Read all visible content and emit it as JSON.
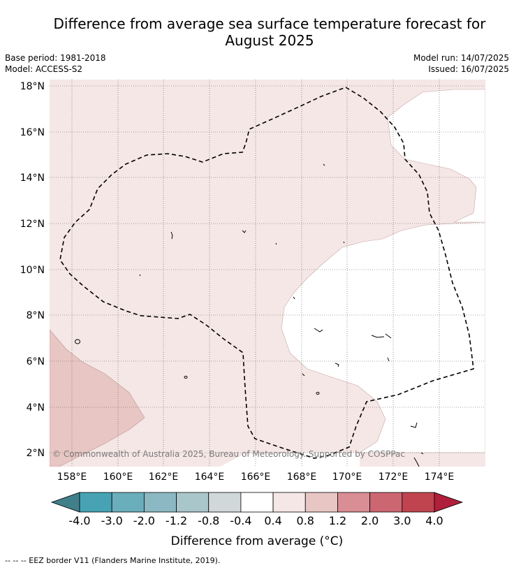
{
  "title_line1": "Difference from average sea surface temperature forecast for",
  "title_line2": "August 2025",
  "meta": {
    "base_period": "Base period: 1981-2018",
    "model": "Model: ACCESS-S2",
    "model_run": "Model run: 14/07/2025",
    "issued": "Issued: 16/07/2025"
  },
  "map": {
    "lat_ticks": [
      "18°N",
      "16°N",
      "14°N",
      "12°N",
      "10°N",
      "8°N",
      "6°N",
      "4°N",
      "2°N"
    ],
    "lon_ticks": [
      "158°E",
      "160°E",
      "162°E",
      "164°E",
      "166°E",
      "168°E",
      "170°E",
      "172°E",
      "174°E"
    ],
    "copyright": "© Commonwealth of Australia 2025, Bureau of Meteorology. Supported by COSPPac",
    "colors": {
      "band_0_4_0_8": "#f5e7e6",
      "band_0_8_1_2": "#e8c6c3",
      "neutral": "#ffffff"
    }
  },
  "colorbar": {
    "tick_labels": [
      "-4.0",
      "-3.0",
      "-2.0",
      "-1.2",
      "-0.8",
      "-0.4",
      "0.4",
      "0.8",
      "1.2",
      "2.0",
      "3.0",
      "4.0"
    ],
    "colors": [
      "#417f8b",
      "#47a3b4",
      "#6aaebc",
      "#8cb8c3",
      "#a9c6cb",
      "#d0d8da",
      "#ffffff",
      "#f5e7e6",
      "#e8c6c3",
      "#d98d94",
      "#cc6670",
      "#c0444f",
      "#b01f3b"
    ],
    "title": "Difference from average (°C)"
  },
  "footer": "--  --  -- EEZ border V11 (Flanders Marine Institute, 2019)."
}
